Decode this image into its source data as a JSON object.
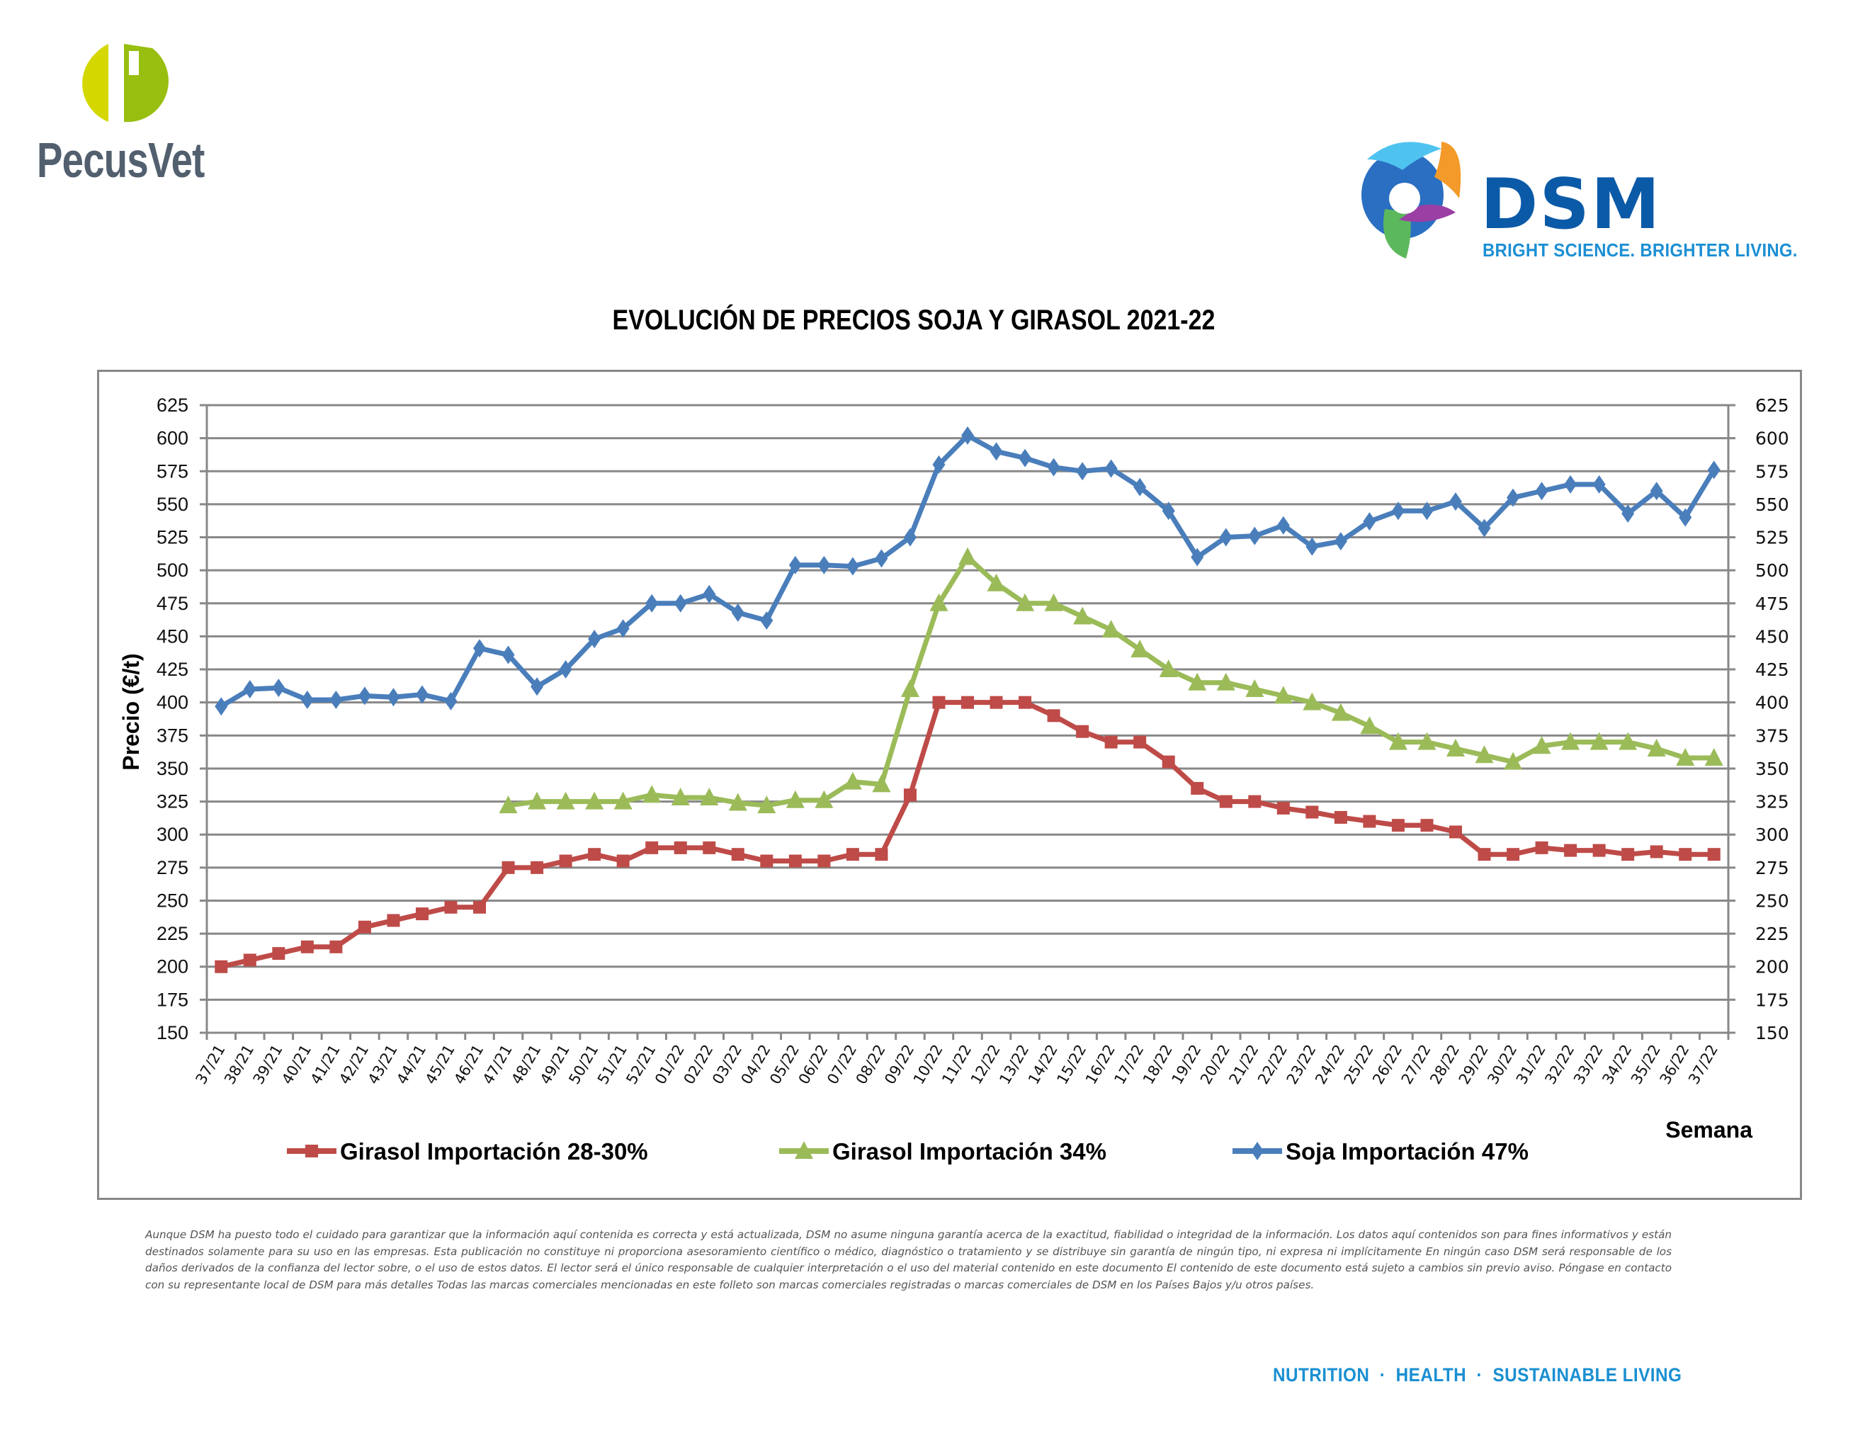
{
  "header": {
    "left_logo_name": "PecusVet",
    "right_logo_name": "DSM",
    "right_logo_tagline": "BRIGHT SCIENCE. BRIGHTER LIVING."
  },
  "colors": {
    "soja": "#4a7ebb",
    "girasol_28_30": "#be4b48",
    "girasol_34": "#9bbb59",
    "grid": "#888888",
    "pecus_green_light": "#d4d800",
    "pecus_green": "#98bf10",
    "pecus_gray": "#525f6e",
    "dsm_blue": "#0b5aa8",
    "dsm_light_blue": "#1c8fd3"
  },
  "chart_data": {
    "type": "line",
    "title": "EVOLUCIÓN DE PRECIOS SOJA Y GIRASOL 2021-22",
    "xlabel": "Semana",
    "ylabel": "Precio (€/t)",
    "ylim": [
      150,
      625
    ],
    "yticks": [
      150,
      175,
      200,
      225,
      250,
      275,
      300,
      325,
      350,
      375,
      400,
      425,
      450,
      475,
      500,
      525,
      550,
      575,
      600,
      625
    ],
    "secondary_y_axis_mirrored": true,
    "grid": true,
    "legend_position": "bottom",
    "categories": [
      "37/21",
      "38/21",
      "39/21",
      "40/21",
      "41/21",
      "42/21",
      "43/21",
      "44/21",
      "45/21",
      "46/21",
      "47/21",
      "48/21",
      "49/21",
      "50/21",
      "51/21",
      "52/21",
      "01/22",
      "02/22",
      "03/22",
      "04/22",
      "05/22",
      "06/22",
      "07/22",
      "08/22",
      "09/22",
      "10/22",
      "11/22",
      "12/22",
      "13/22",
      "14/22",
      "15/22",
      "16/22",
      "17/22",
      "18/22",
      "19/22",
      "20/22",
      "21/22",
      "22/22",
      "23/22",
      "24/22",
      "25/22",
      "26/22",
      "27/22",
      "28/22",
      "29/22",
      "30/22",
      "31/22",
      "32/22",
      "33/22",
      "34/22",
      "35/22",
      "36/22",
      "37/22"
    ],
    "series": [
      {
        "name": "Girasol Importación 28-30%",
        "color": "#be4b48",
        "marker": "square",
        "values": [
          200,
          205,
          210,
          215,
          215,
          230,
          235,
          240,
          245,
          245,
          275,
          275,
          280,
          285,
          280,
          290,
          290,
          290,
          285,
          280,
          280,
          280,
          285,
          285,
          330,
          400,
          400,
          400,
          400,
          390,
          378,
          370,
          370,
          355,
          335,
          325,
          325,
          320,
          317,
          313,
          310,
          307,
          307,
          302,
          285,
          285,
          290,
          288,
          288,
          285,
          287,
          285,
          285
        ]
      },
      {
        "name": "Girasol Importación 34%",
        "color": "#9bbb59",
        "marker": "triangle",
        "values": [
          null,
          null,
          null,
          null,
          null,
          null,
          null,
          null,
          null,
          null,
          322,
          325,
          325,
          325,
          325,
          330,
          328,
          328,
          324,
          322,
          326,
          326,
          340,
          338,
          410,
          475,
          510,
          490,
          475,
          475,
          465,
          455,
          440,
          425,
          415,
          415,
          410,
          405,
          400,
          392,
          382,
          370,
          370,
          365,
          360,
          355,
          367,
          370,
          370,
          370,
          365,
          358,
          358
        ]
      },
      {
        "name": "Soja Importación 47%",
        "color": "#4a7ebb",
        "marker": "diamond",
        "values": [
          397,
          410,
          411,
          402,
          402,
          405,
          404,
          406,
          401,
          441,
          436,
          412,
          425,
          448,
          456,
          475,
          475,
          482,
          468,
          462,
          504,
          504,
          503,
          509,
          525,
          580,
          602,
          590,
          585,
          578,
          575,
          577,
          563,
          545,
          510,
          525,
          526,
          534,
          518,
          522,
          537,
          545,
          545,
          552,
          532,
          555,
          560,
          565,
          565,
          543,
          560,
          540,
          576
        ]
      }
    ]
  },
  "disclaimer": "Aunque DSM ha puesto todo el cuidado para garantizar que la información aquí contenida es correcta y está actualizada, DSM no asume ninguna garantía acerca de la exactitud, fiabilidad o integridad de la información. Los datos aquí contenidos son para fines informativos y están destinados solamente para su uso en las empresas. Esta publicación no constituye ni proporciona asesoramiento científico o médico, diagnóstico o tratamiento y se distribuye sin garantía de ningún tipo, ni expresa ni implícitamente En ningún caso DSM será responsable de los daños derivados de la confianza del lector sobre, o el uso de estos datos. El lector será el único responsable de cualquier interpretación o el uso del material contenido en este documento El contenido de este documento está sujeto a cambios sin previo aviso. Póngase en contacto con su representante local de DSM para más detalles Todas las marcas comerciales mencionadas en este folleto son marcas comerciales registradas o marcas comerciales de DSM en los Países Bajos y/u otros países.",
  "footer": {
    "tagline": "NUTRITION  ·  HEALTH  ·  SUSTAINABLE LIVING"
  }
}
